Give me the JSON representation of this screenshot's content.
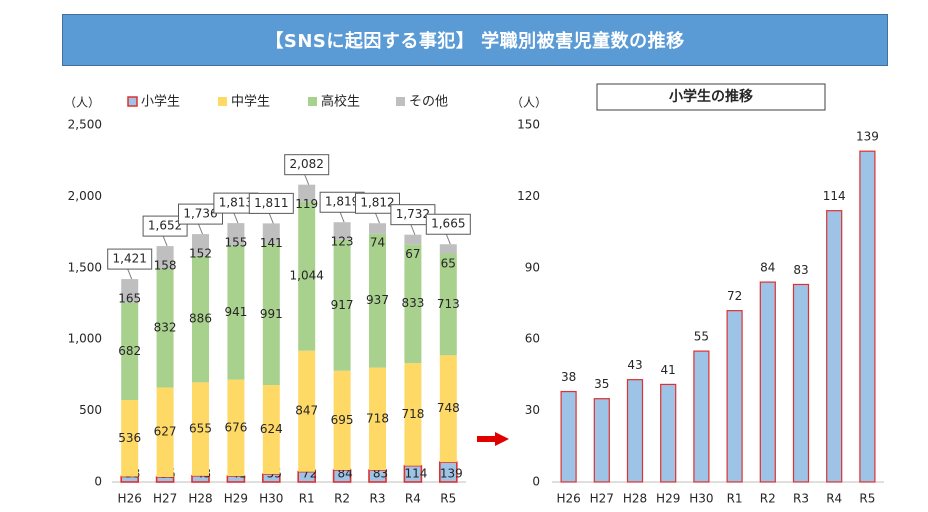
{
  "banner": {
    "title": "【SNSに起因する事犯】 学職別被害児童数の推移"
  },
  "colors": {
    "elementary": "#9dc3e6",
    "elementary_border": "#e03030",
    "middle": "#ffd966",
    "high": "#a9d18e",
    "other": "#bfbfbf",
    "arrow": "#e00000",
    "banner": "#5b9bd5"
  },
  "chart_data": [
    {
      "type": "bar",
      "stacked": true,
      "yunit": "（人）",
      "ylim": [
        0,
        2500
      ],
      "yticks": [
        "0",
        "500",
        "1,000",
        "1,500",
        "2,000",
        "2,500"
      ],
      "ytick_values": [
        0,
        500,
        1000,
        1500,
        2000,
        2500
      ],
      "categories": [
        "H26",
        "H27",
        "H28",
        "H29",
        "H30",
        "R1",
        "R2",
        "R3",
        "R4",
        "R5"
      ],
      "legend_position": "top",
      "series": [
        {
          "name": "小学生",
          "values": [
            38,
            35,
            43,
            41,
            55,
            72,
            84,
            83,
            114,
            139
          ]
        },
        {
          "name": "中学生",
          "values": [
            536,
            627,
            655,
            676,
            624,
            847,
            695,
            718,
            718,
            748
          ]
        },
        {
          "name": "高校生",
          "values": [
            682,
            832,
            886,
            941,
            991,
            1044,
            917,
            937,
            833,
            713
          ]
        },
        {
          "name": "その他",
          "values": [
            165,
            158,
            152,
            155,
            141,
            119,
            123,
            74,
            67,
            65
          ]
        }
      ],
      "series_labels": [
        [
          "38",
          "35",
          "43",
          "41",
          "55",
          "72",
          "84",
          "83",
          "114",
          "139"
        ],
        [
          "536",
          "627",
          "655",
          "676",
          "624",
          "847",
          "695",
          "718",
          "718",
          "748"
        ],
        [
          "682",
          "832",
          "886",
          "941",
          "991",
          "1,044",
          "917",
          "937",
          "833",
          "713"
        ],
        [
          "165",
          "158",
          "152",
          "155",
          "141",
          "119",
          "123",
          "74",
          "67",
          "65"
        ]
      ],
      "totals": [
        1421,
        1652,
        1736,
        1813,
        1811,
        2082,
        1819,
        1812,
        1732,
        1665
      ],
      "total_labels": [
        "1,421",
        "1,652",
        "1,736",
        "1,813",
        "1,811",
        "2,082",
        "1,819",
        "1,812",
        "1,732",
        "1,665"
      ]
    },
    {
      "type": "bar",
      "title": "小学生の推移",
      "yunit": "（人）",
      "ylim": [
        0,
        150
      ],
      "yticks": [
        "0",
        "30",
        "60",
        "90",
        "120",
        "150"
      ],
      "ytick_values": [
        0,
        30,
        60,
        90,
        120,
        150
      ],
      "categories": [
        "H26",
        "H27",
        "H28",
        "H29",
        "H30",
        "R1",
        "R2",
        "R3",
        "R4",
        "R5"
      ],
      "values": [
        38,
        35,
        43,
        41,
        55,
        72,
        84,
        83,
        114,
        139
      ],
      "value_labels": [
        "38",
        "35",
        "43",
        "41",
        "55",
        "72",
        "84",
        "83",
        "114",
        "139"
      ]
    }
  ]
}
